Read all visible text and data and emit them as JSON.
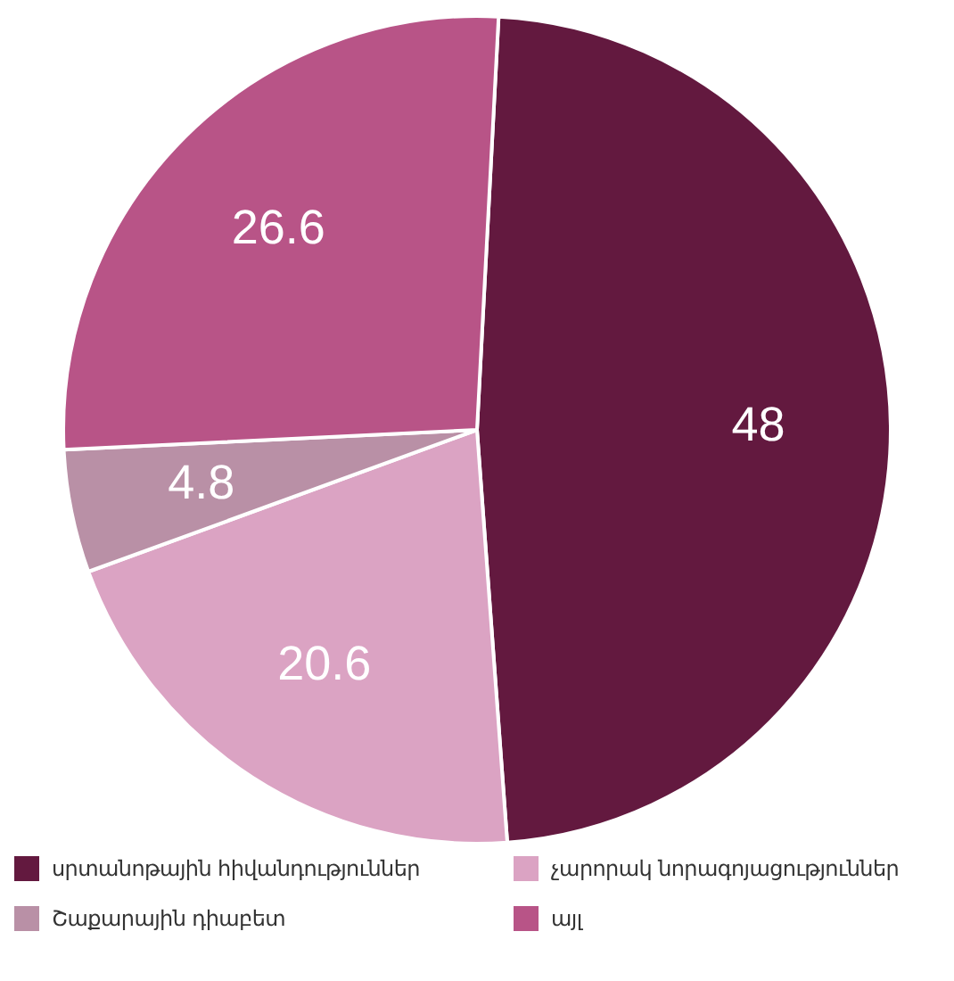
{
  "chart_data": {
    "type": "pie",
    "categories": [
      "սրտանոթային հիվանդություններ",
      "չարորակ նորագոյացություններ",
      "Շաքարային դիաբետ",
      "այլ"
    ],
    "values": [
      48,
      20.6,
      4.8,
      26.6
    ],
    "colors": [
      "#63193f",
      "#dba3c3",
      "#b990a6",
      "#b85487"
    ],
    "data_labels": true,
    "legend": "bottom"
  }
}
